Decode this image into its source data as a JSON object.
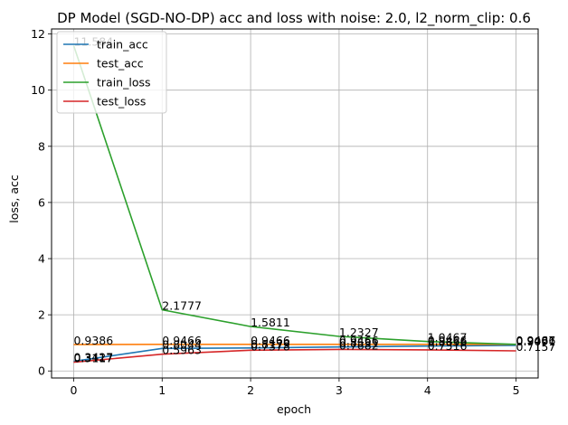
{
  "chart_data": {
    "type": "line",
    "title": "DP Model (SGD-NO-DP) acc and loss with noise: 2.0, l2_norm_clip: 0.6",
    "xlabel": "epoch",
    "ylabel": "loss, acc",
    "x": [
      0,
      1,
      2,
      3,
      4,
      5
    ],
    "xlim": [
      -0.25,
      5.25
    ],
    "ylim": [
      -0.25,
      12.18
    ],
    "xticks": [
      0,
      1,
      2,
      3,
      4,
      5
    ],
    "yticks": [
      0,
      2,
      4,
      6,
      8,
      10,
      12
    ],
    "grid": true,
    "legend_position": "top-left",
    "series": [
      {
        "name": "train_acc",
        "color": "#1f77b4",
        "values": [
          0.3427,
          0.8044,
          0.8179,
          0.8531,
          0.8856,
          0.9091
        ],
        "labels": [
          "0.3427",
          "0.8044",
          "0.8179",
          "0.8531",
          "0.8856",
          "0.9091"
        ]
      },
      {
        "name": "test_acc",
        "color": "#ff7f0e",
        "values": [
          0.9386,
          0.9466,
          0.9466,
          0.9466,
          0.9466,
          0.9466
        ],
        "labels": [
          "0.9386",
          "0.9466",
          "0.9466",
          "0.9466",
          "0.9466",
          "0.9466"
        ]
      },
      {
        "name": "train_loss",
        "color": "#2ca02c",
        "values": [
          11.584,
          2.1777,
          1.5811,
          1.2327,
          1.0467,
          0.9487
        ],
        "labels": [
          "11.584",
          "2.1777",
          "1.5811",
          "1.2327",
          "1.0467",
          "0.9487"
        ]
      },
      {
        "name": "test_loss",
        "color": "#d62728",
        "values": [
          0.3117,
          0.5963,
          0.7378,
          0.7682,
          0.7516,
          0.7157
        ],
        "labels": [
          "0.3117",
          "0.5963",
          "0.7378",
          "0.7682",
          "0.7516",
          "0.7157"
        ]
      }
    ]
  }
}
